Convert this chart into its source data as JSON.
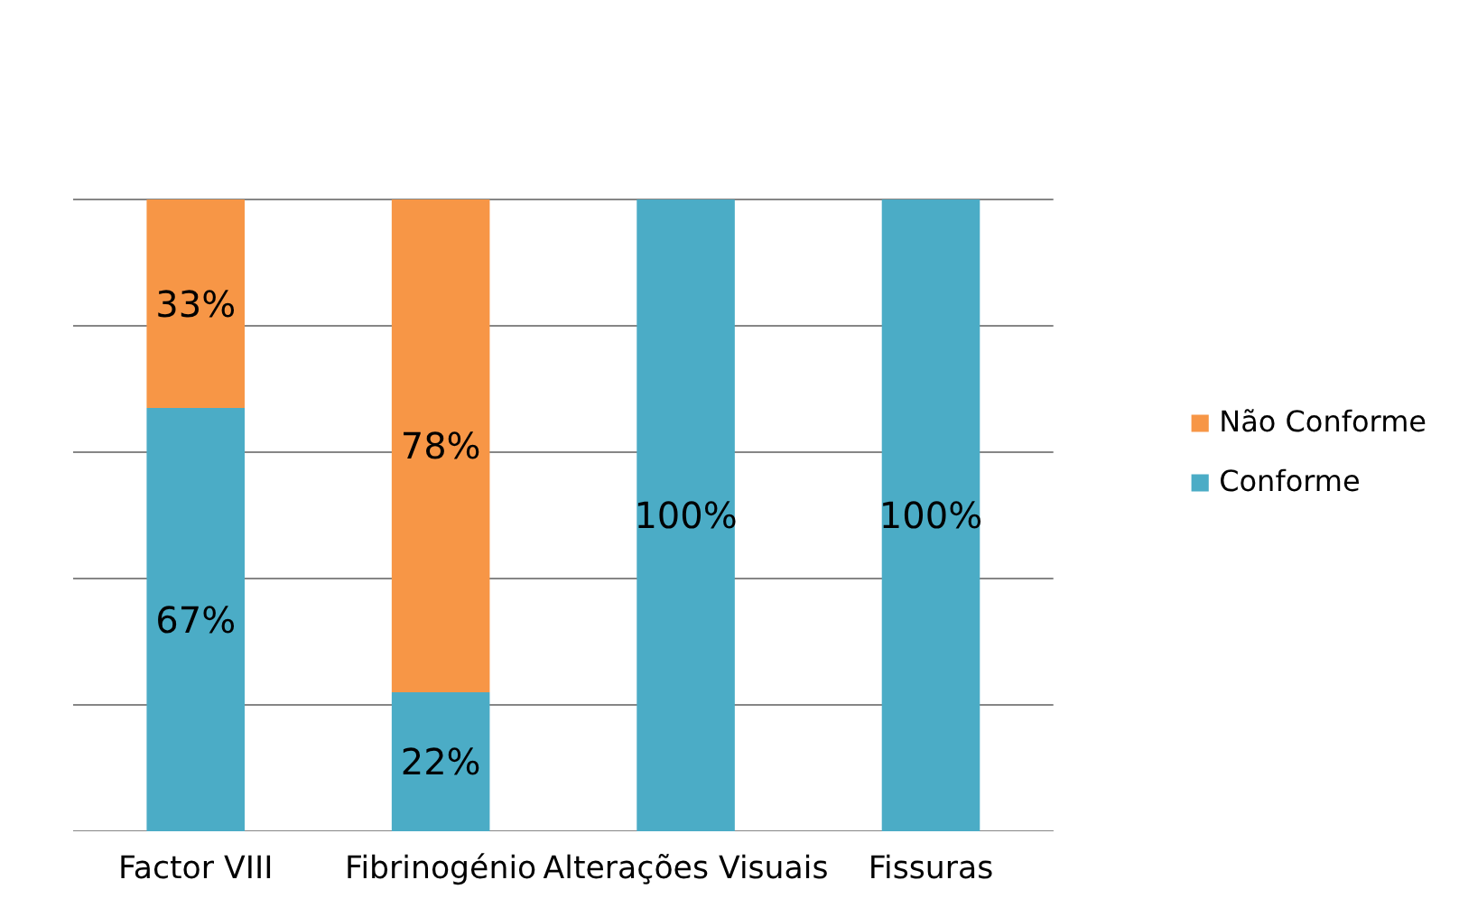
{
  "chart_data": {
    "type": "bar",
    "stacked": true,
    "categories": [
      "Factor VIII",
      "Fibrinogénio",
      "Alterações Visuais",
      "Fissuras"
    ],
    "series": [
      {
        "name": "Conforme",
        "color": "#4bacc6",
        "values": [
          67,
          22,
          100,
          100
        ],
        "value_labels": [
          "67%",
          "22%",
          "100%",
          "100%"
        ]
      },
      {
        "name": "Não Conforme",
        "color": "#f79646",
        "values": [
          33,
          78,
          0,
          0
        ],
        "value_labels": [
          "33%",
          "78%",
          null,
          null
        ]
      }
    ],
    "yticks": [
      {
        "value": 0,
        "label": null
      },
      {
        "value": 20,
        "label": null
      },
      {
        "value": 40,
        "label": null
      },
      {
        "value": 60,
        "label": null
      },
      {
        "value": 80,
        "label": null
      },
      {
        "value": 100,
        "label": null
      }
    ],
    "grid": "y",
    "legend": "right",
    "tick_labels": "x"
  }
}
